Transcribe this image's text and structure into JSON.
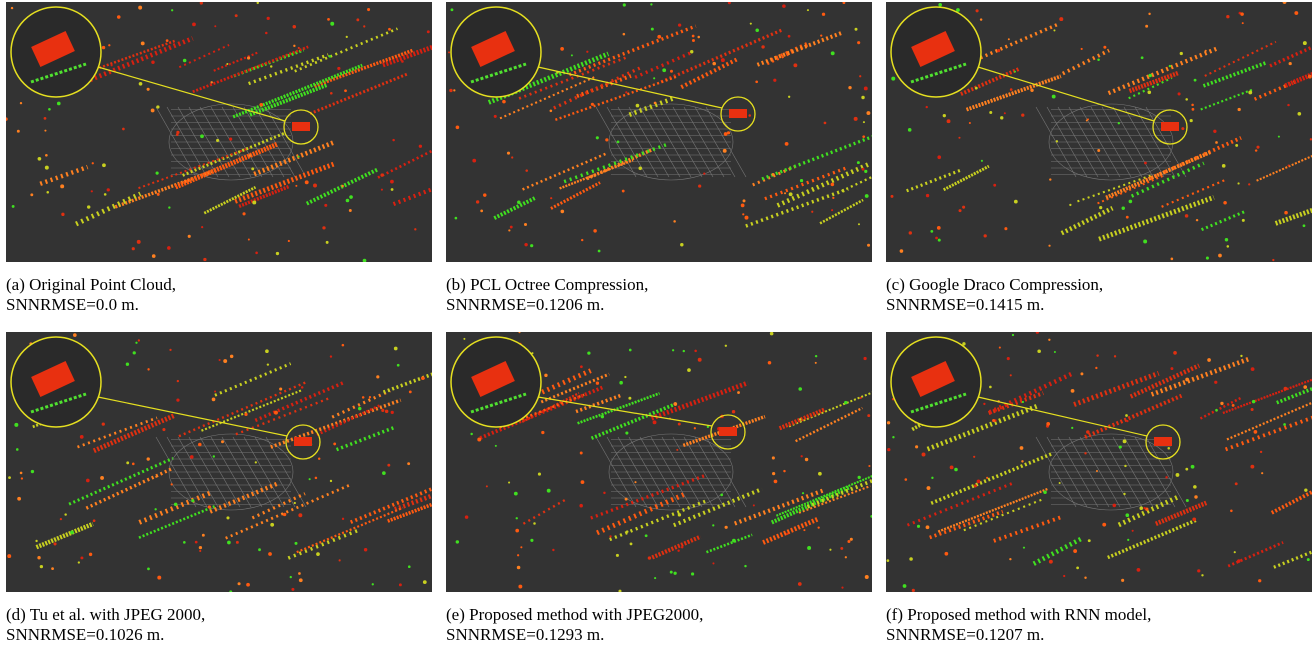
{
  "panels": [
    {
      "label": "(a) Original Point Cloud,",
      "metric": "SNNRMSE=0.0 m."
    },
    {
      "label": "(b) PCL Octree Compression,",
      "metric": "SNNRMSE=0.1206 m."
    },
    {
      "label": "(c) Google Draco Compression,",
      "metric": "SNNRMSE=0.1415 m."
    },
    {
      "label": "(d) Tu et al. with JPEG 2000,",
      "metric": "SNNRMSE=0.1026 m."
    },
    {
      "label": "(e) Proposed method with JPEG2000,",
      "metric": "SNNRMSE=0.1293 m."
    },
    {
      "label": "(f) Proposed method with RNN model,",
      "metric": "SNNRMSE=0.1207 m."
    }
  ]
}
